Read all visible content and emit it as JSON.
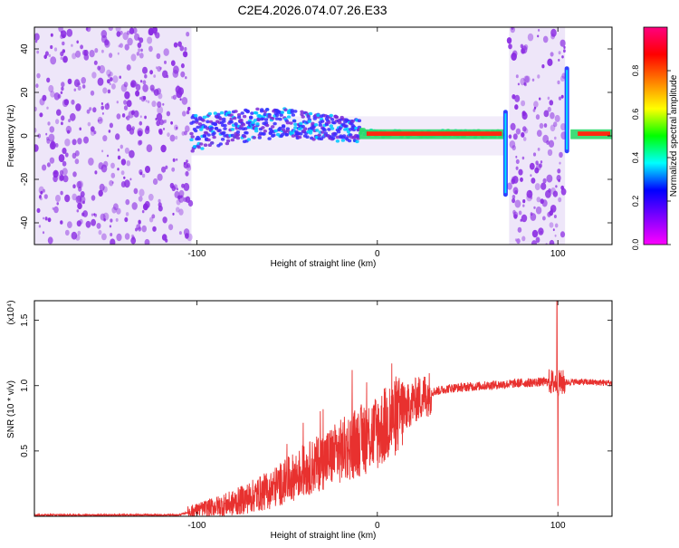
{
  "title": "C2E4.2026.074.07.26.E33",
  "colors": {
    "line": "#e8312f",
    "scatter": "#8a2be2",
    "scatter_light": "#d9c8f2",
    "axis": "#000000"
  },
  "colorbar": {
    "label": "Normalized spectral amplitude",
    "ticks": [
      "0.0",
      "0.2",
      "0.4",
      "0.6",
      "0.8"
    ],
    "tick_values": [
      0.0,
      0.2,
      0.4,
      0.6,
      0.8
    ],
    "range": [
      0,
      1
    ],
    "colors": [
      "#ff00ff",
      "#8000ff",
      "#0000ff",
      "#00ffff",
      "#00ff00",
      "#ffff00",
      "#ff8000",
      "#ff0000",
      "#ff0080"
    ]
  },
  "chart_data": [
    {
      "type": "heatmap",
      "xlabel": "Height of straight line (km)",
      "ylabel": "Frequency (Hz)",
      "xlim": [
        -190,
        130
      ],
      "ylim": [
        -50,
        50
      ],
      "xticks": [
        -100,
        0,
        100
      ],
      "xtick_labels": [
        "-100",
        "0",
        "100"
      ],
      "yticks": [
        -40,
        -20,
        0,
        20,
        40
      ],
      "ytick_labels": [
        "-40",
        "-20",
        "0",
        "20",
        "40"
      ],
      "noise_regions": [
        [
          -190,
          -103
        ],
        [
          73,
          104
        ]
      ],
      "ridge": [
        {
          "x": -103,
          "y": 1
        },
        {
          "x": -90,
          "y": 3
        },
        {
          "x": -70,
          "y": 5
        },
        {
          "x": -50,
          "y": 6
        },
        {
          "x": -30,
          "y": 4
        },
        {
          "x": -10,
          "y": 2
        },
        {
          "x": 0,
          "y": 1
        },
        {
          "x": 20,
          "y": 1
        },
        {
          "x": 50,
          "y": 1
        },
        {
          "x": 70,
          "y": 1
        }
      ],
      "strong_band": [
        [
          -10,
          70
        ],
        [
          107,
          130
        ]
      ],
      "spikes": [
        {
          "x": 71,
          "from": -28,
          "to": 12
        },
        {
          "x": 105,
          "from": -8,
          "to": 32
        }
      ]
    },
    {
      "type": "line",
      "xlabel": "Height of straight line (km)",
      "ylabel": "SNR (10 * v/v)",
      "multiplier": "(x10⁴)",
      "xlim": [
        -190,
        130
      ],
      "ylim": [
        0,
        1.65
      ],
      "xticks": [
        -100,
        0,
        100
      ],
      "xtick_labels": [
        "-100",
        "0",
        "100"
      ],
      "yticks": [
        0.5,
        1.0,
        1.5
      ],
      "ytick_labels": [
        "0.5",
        "1.0",
        "1.5"
      ],
      "series": [
        {
          "envelope": [
            {
              "x": -190,
              "y": 0.01
            },
            {
              "x": -110,
              "y": 0.01
            },
            {
              "x": -100,
              "y": 0.05
            },
            {
              "x": -80,
              "y": 0.1
            },
            {
              "x": -60,
              "y": 0.2
            },
            {
              "x": -40,
              "y": 0.35
            },
            {
              "x": -20,
              "y": 0.5
            },
            {
              "x": 0,
              "y": 0.65
            },
            {
              "x": 10,
              "y": 0.75
            },
            {
              "x": 20,
              "y": 0.88
            },
            {
              "x": 30,
              "y": 0.95
            },
            {
              "x": 40,
              "y": 0.98
            },
            {
              "x": 60,
              "y": 1.0
            },
            {
              "x": 80,
              "y": 1.02
            },
            {
              "x": 95,
              "y": 1.03
            },
            {
              "x": 100,
              "y": 1.02
            },
            {
              "x": 110,
              "y": 1.03
            },
            {
              "x": 130,
              "y": 1.02
            }
          ],
          "features": [
            {
              "x": 99.5,
              "y": 1.65
            },
            {
              "x": 100,
              "y": 0.08
            },
            {
              "x": -14,
              "y": 1.12
            },
            {
              "x": 8,
              "y": 1.17
            },
            {
              "x": -30,
              "y": 0.82
            }
          ]
        }
      ]
    }
  ]
}
